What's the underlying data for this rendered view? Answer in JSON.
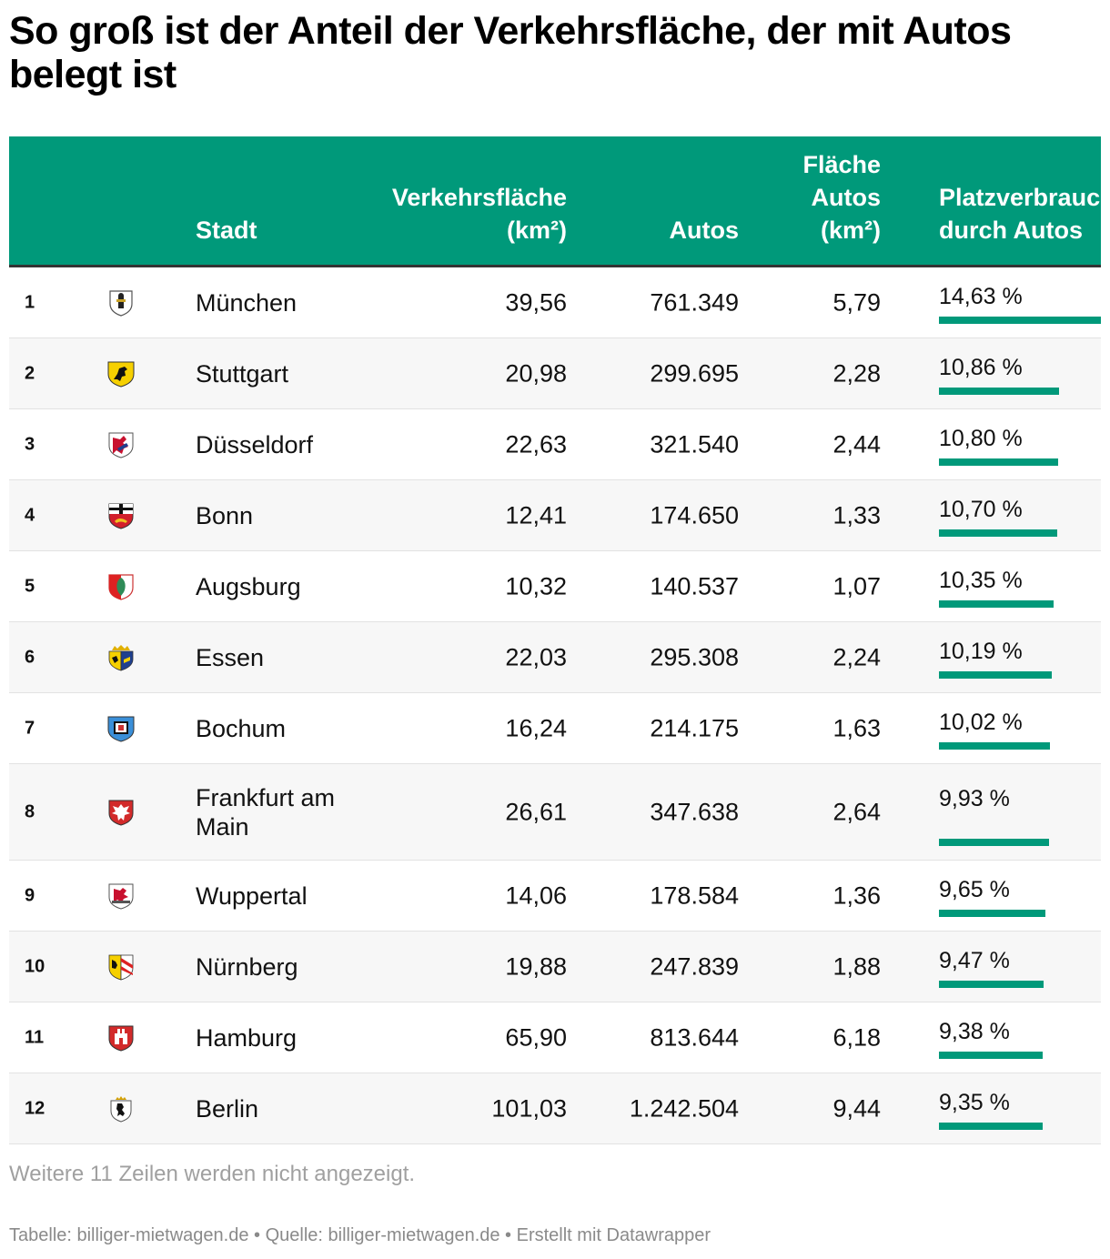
{
  "title": "So groß ist der Anteil der Verkehrsfläche, der mit Autos belegt ist",
  "headers": {
    "city": "Stadt",
    "area_line1": "Verkehrsfläche",
    "area_line2": "(km²)",
    "cars": "Autos",
    "car_area_line1": "Fläche",
    "car_area_line2": "Autos",
    "car_area_line3": "(km²)",
    "share_line1": "Platzverbrauch",
    "share_line2": "durch Autos"
  },
  "rows": [
    {
      "rank": "1",
      "city": "München",
      "area": "39,56",
      "cars": "761.349",
      "car_area": "5,79",
      "share": "14,63 %",
      "share_value": 14.63,
      "crest": "muenchen-crest-icon"
    },
    {
      "rank": "2",
      "city": "Stuttgart",
      "area": "20,98",
      "cars": "299.695",
      "car_area": "2,28",
      "share": "10,86 %",
      "share_value": 10.86,
      "crest": "stuttgart-crest-icon"
    },
    {
      "rank": "3",
      "city": "Düsseldorf",
      "area": "22,63",
      "cars": "321.540",
      "car_area": "2,44",
      "share": "10,80 %",
      "share_value": 10.8,
      "crest": "duesseldorf-crest-icon"
    },
    {
      "rank": "4",
      "city": "Bonn",
      "area": "12,41",
      "cars": "174.650",
      "car_area": "1,33",
      "share": "10,70 %",
      "share_value": 10.7,
      "crest": "bonn-crest-icon"
    },
    {
      "rank": "5",
      "city": "Augsburg",
      "area": "10,32",
      "cars": "140.537",
      "car_area": "1,07",
      "share": "10,35 %",
      "share_value": 10.35,
      "crest": "augsburg-crest-icon"
    },
    {
      "rank": "6",
      "city": "Essen",
      "area": "22,03",
      "cars": "295.308",
      "car_area": "2,24",
      "share": "10,19 %",
      "share_value": 10.19,
      "crest": "essen-crest-icon"
    },
    {
      "rank": "7",
      "city": "Bochum",
      "area": "16,24",
      "cars": "214.175",
      "car_area": "1,63",
      "share": "10,02 %",
      "share_value": 10.02,
      "crest": "bochum-crest-icon"
    },
    {
      "rank": "8",
      "city": "Frankfurt am Main",
      "area": "26,61",
      "cars": "347.638",
      "car_area": "2,64",
      "share": "9,93 %",
      "share_value": 9.93,
      "crest": "frankfurt-crest-icon"
    },
    {
      "rank": "9",
      "city": "Wuppertal",
      "area": "14,06",
      "cars": "178.584",
      "car_area": "1,36",
      "share": "9,65 %",
      "share_value": 9.65,
      "crest": "wuppertal-crest-icon"
    },
    {
      "rank": "10",
      "city": "Nürnberg",
      "area": "19,88",
      "cars": "247.839",
      "car_area": "1,88",
      "share": "9,47 %",
      "share_value": 9.47,
      "crest": "nuernberg-crest-icon"
    },
    {
      "rank": "11",
      "city": "Hamburg",
      "area": "65,90",
      "cars": "813.644",
      "car_area": "6,18",
      "share": "9,38 %",
      "share_value": 9.38,
      "crest": "hamburg-crest-icon"
    },
    {
      "rank": "12",
      "city": "Berlin",
      "area": "101,03",
      "cars": "1.242.504",
      "car_area": "9,44",
      "share": "9,35 %",
      "share_value": 9.35,
      "crest": "berlin-crest-icon"
    }
  ],
  "footnote": "Weitere 11 Zeilen werden nicht angezeigt.",
  "credit": "Tabelle: billiger-mietwagen.de • Quelle: billiger-mietwagen.de • Erstellt mit Datawrapper",
  "colors": {
    "header_bg": "#00997a",
    "bar": "#00997a"
  }
}
